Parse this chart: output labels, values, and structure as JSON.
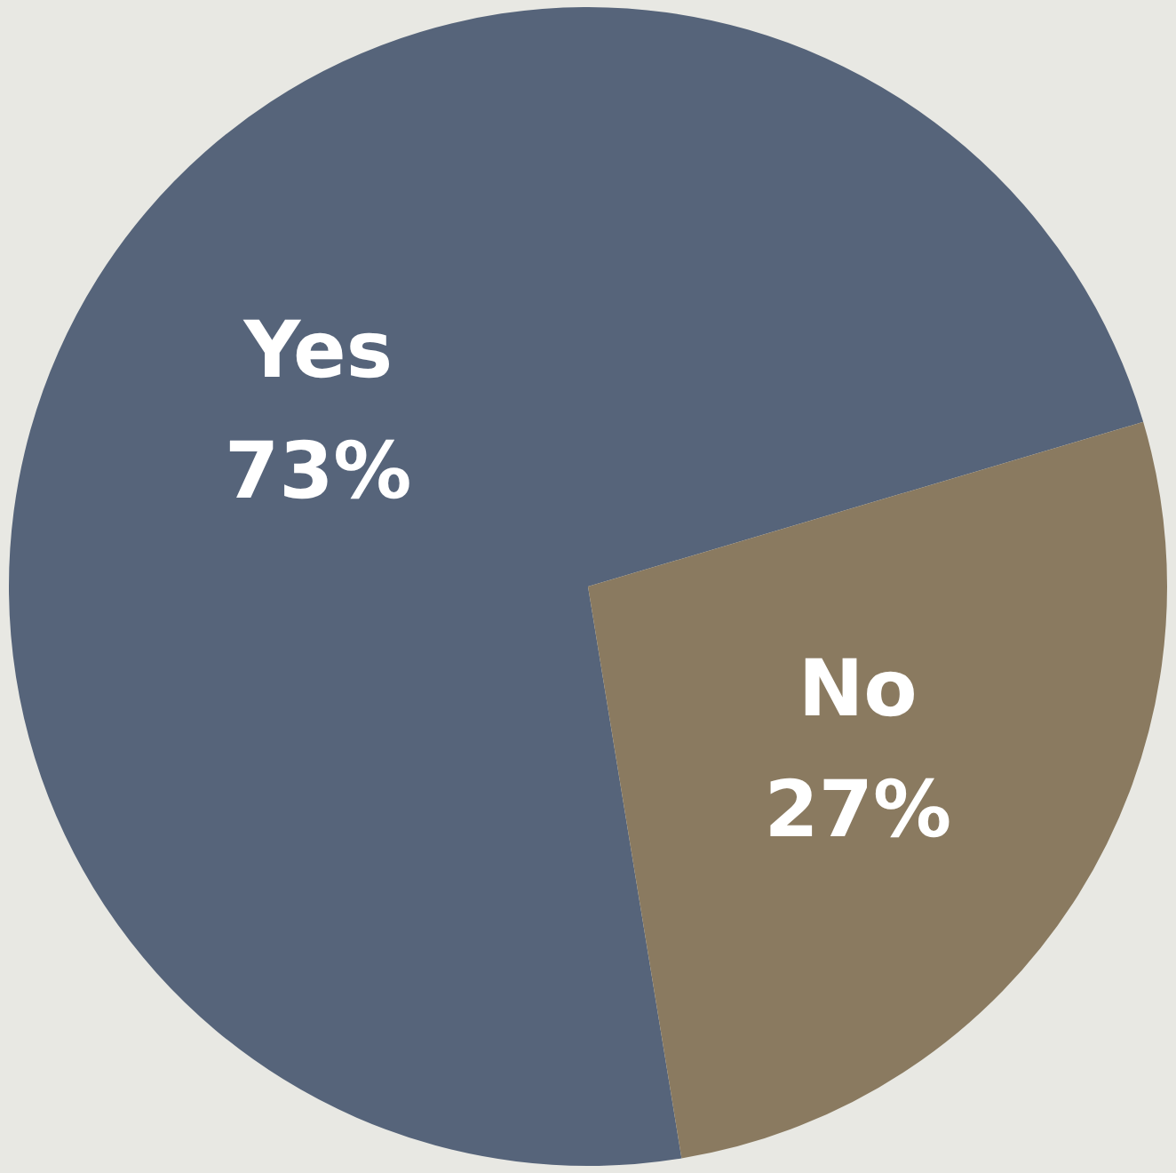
{
  "chart_data": {
    "type": "pie",
    "categories": [
      "Yes",
      "No"
    ],
    "values": [
      73,
      27
    ],
    "colors": [
      "#56647a",
      "#8a7a60"
    ],
    "value_labels": [
      "73%",
      "27%"
    ]
  }
}
